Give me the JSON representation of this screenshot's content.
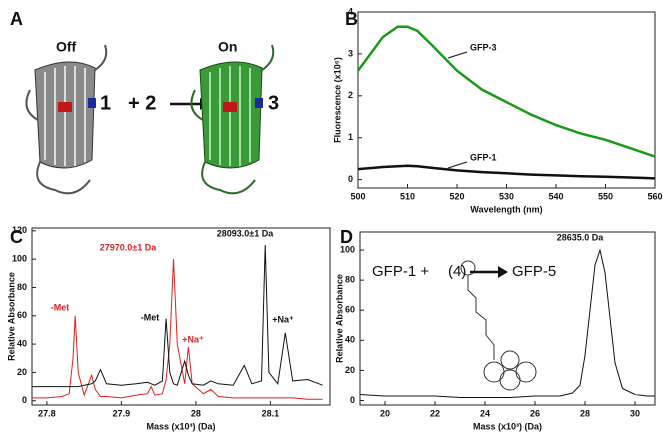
{
  "panel_a": {
    "letter": "A",
    "left_state": "Off",
    "left_label": "1",
    "middle": "+ 2",
    "right_state": "On",
    "right_label": "3"
  },
  "chart_data": [
    {
      "type": "line",
      "letter": "B",
      "xlabel": "Wavelength (nm)",
      "ylabel": "Fluorescence (x10⁶)",
      "x": [
        500,
        505,
        508,
        510,
        512,
        515,
        520,
        525,
        530,
        535,
        540,
        545,
        550,
        555,
        560
      ],
      "series": [
        {
          "name": "GFP-3",
          "color": "#1a9a1a",
          "values": [
            2.6,
            3.4,
            3.65,
            3.65,
            3.55,
            3.2,
            2.6,
            2.15,
            1.85,
            1.55,
            1.3,
            1.1,
            0.95,
            0.75,
            0.55
          ]
        },
        {
          "name": "GFP-1",
          "color": "#111111",
          "values": [
            0.25,
            0.3,
            0.32,
            0.33,
            0.32,
            0.28,
            0.22,
            0.18,
            0.15,
            0.12,
            0.1,
            0.08,
            0.07,
            0.05,
            0.03
          ]
        }
      ],
      "xlim": [
        500,
        560
      ],
      "xticks": [
        500,
        510,
        520,
        530,
        540,
        550,
        560
      ],
      "ylim": [
        -0.2,
        4
      ],
      "yticks": [
        0,
        1,
        2,
        3,
        4
      ]
    },
    {
      "type": "line",
      "letter": "C",
      "xlabel": "Mass (x10³) (Da)",
      "ylabel": "Relative Absorbance",
      "x": [
        27.78,
        27.8,
        27.82,
        27.83,
        27.835,
        27.838,
        27.842,
        27.85,
        27.86,
        27.865,
        27.872,
        27.88,
        27.9,
        27.92,
        27.935,
        27.94,
        27.945,
        27.955,
        27.96,
        27.965,
        27.97,
        27.975,
        27.985,
        27.99,
        27.995,
        28.01,
        28.02,
        28.03,
        28.05,
        28.065,
        28.075,
        28.088,
        28.093,
        28.098,
        28.11,
        28.12,
        28.13,
        28.15,
        28.17
      ],
      "series": [
        {
          "color": "#e02020",
          "values": [
            2,
            2,
            3,
            5,
            30,
            60,
            20,
            4,
            18,
            8,
            3,
            3,
            2,
            4,
            5,
            10,
            4,
            5,
            15,
            40,
            100,
            40,
            12,
            38,
            12,
            5,
            8,
            3,
            2,
            2,
            2,
            2,
            2,
            2,
            2,
            2,
            2,
            1,
            1
          ]
        },
        {
          "color": "#111111",
          "values": [
            10,
            10,
            10,
            10,
            10,
            10,
            10,
            11,
            12,
            14,
            22,
            12,
            11,
            12,
            13,
            12,
            11,
            14,
            58,
            20,
            12,
            11,
            28,
            18,
            12,
            11,
            14,
            12,
            11,
            25,
            12,
            14,
            110,
            20,
            12,
            48,
            14,
            15,
            11
          ]
        }
      ],
      "annotations": [
        {
          "text": "-Met",
          "color": "#e02020"
        },
        {
          "text": "27970.0±1 Da",
          "color": "#e02020"
        },
        {
          "text": "+Na⁺",
          "color": "#e02020"
        },
        {
          "text": "-Met",
          "color": "#111111"
        },
        {
          "text": "28093.0±1 Da",
          "color": "#111111"
        },
        {
          "text": "+Na⁺",
          "color": "#111111"
        }
      ],
      "xlim": [
        27.78,
        28.18
      ],
      "xticks": [
        27.8,
        27.9,
        28.0,
        28.1
      ],
      "ylim": [
        -3,
        122
      ],
      "yticks": [
        0,
        20,
        40,
        60,
        80,
        100,
        120
      ]
    },
    {
      "type": "line",
      "letter": "D",
      "xlabel": "Mass (x10³) (Da)",
      "ylabel": "Relative Absorbance",
      "x": [
        19,
        20,
        21,
        22,
        23,
        24,
        25,
        26,
        27,
        27.5,
        27.8,
        28.0,
        28.2,
        28.4,
        28.6,
        28.8,
        29.0,
        29.2,
        29.5,
        30,
        30.5,
        30.8
      ],
      "series": [
        {
          "color": "#111111",
          "values": [
            4,
            3,
            3,
            3,
            2,
            2,
            2,
            3,
            3,
            5,
            10,
            30,
            60,
            90,
            100,
            85,
            55,
            25,
            8,
            4,
            3,
            3
          ]
        }
      ],
      "annotations": [
        {
          "text": "28635.0 Da",
          "color": "#111111"
        },
        {
          "text": "GFP-1 +",
          "color": "#111111"
        },
        {
          "text": "(4)",
          "color": "#111111"
        },
        {
          "text": "GFP-5",
          "color": "#111111"
        }
      ],
      "xlim": [
        19,
        30.8
      ],
      "xticks": [
        20,
        22,
        24,
        26,
        28,
        30
      ],
      "ylim": [
        -3,
        112
      ],
      "yticks": [
        0,
        20,
        40,
        60,
        80,
        100
      ]
    }
  ]
}
